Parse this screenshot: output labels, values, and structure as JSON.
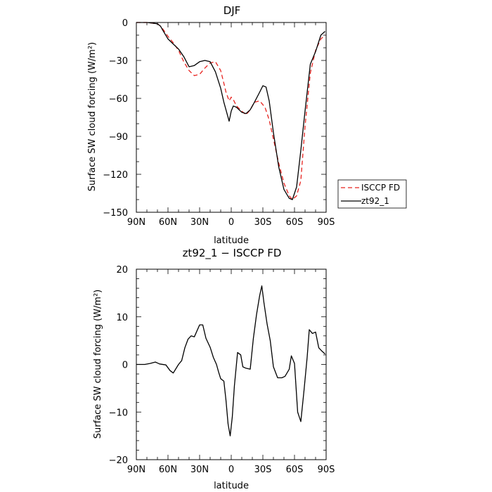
{
  "chart_data": [
    {
      "type": "line",
      "title": "DJF",
      "xlabel": "latitude",
      "ylabel": "Surface SW cloud forcing (W/m²)",
      "xlim": [
        90,
        -90
      ],
      "ylim": [
        -150,
        0
      ],
      "x_ticks": [
        "90N",
        "60N",
        "30N",
        "0",
        "30S",
        "60S",
        "90S"
      ],
      "y_ticks": [
        "0",
        "−30",
        "−60",
        "−90",
        "−120",
        "−150"
      ],
      "legend_position": "right-outside",
      "series": [
        {
          "name": "ISCCP FD",
          "color": "#e8231f",
          "style": "dashed",
          "x": [
            90,
            80,
            75,
            70,
            67,
            65,
            60,
            55,
            50,
            45,
            40,
            35,
            30,
            25,
            20,
            15,
            10,
            7,
            5,
            2,
            0,
            -2,
            -5,
            -10,
            -14,
            -18,
            -22,
            -27,
            -32,
            -36,
            -40,
            -45,
            -50,
            -55,
            -58,
            -62,
            -66,
            -70,
            -75,
            -80,
            -85,
            -89
          ],
          "y": [
            0,
            0,
            -0.5,
            -1,
            -3,
            -5,
            -11,
            -16,
            -22,
            -31,
            -38,
            -42,
            -41,
            -36,
            -32,
            -31,
            -38,
            -48,
            -55,
            -62,
            -59,
            -61,
            -66,
            -70,
            -73,
            -69,
            -63,
            -62,
            -67,
            -77,
            -92,
            -111,
            -127,
            -137,
            -140,
            -137,
            -125,
            -82,
            -40,
            -22,
            -13,
            -10
          ]
        },
        {
          "name": "zt92_1",
          "color": "#000000",
          "style": "solid",
          "x": [
            90,
            80,
            75,
            70,
            67,
            65,
            60,
            55,
            50,
            45,
            40,
            35,
            30,
            25,
            20,
            15,
            10,
            7,
            5,
            2,
            0,
            -2,
            -5,
            -10,
            -14,
            -18,
            -22,
            -27,
            -30,
            -33,
            -36,
            -40,
            -45,
            -50,
            -55,
            -58,
            -62,
            -66,
            -70,
            -75,
            -80,
            -85,
            -89
          ],
          "y": [
            0,
            0,
            -0.5,
            -1,
            -3,
            -6,
            -13,
            -17,
            -21,
            -27,
            -35,
            -34,
            -31,
            -30,
            -31,
            -39,
            -52,
            -63,
            -69,
            -78,
            -70,
            -66,
            -67,
            -71,
            -72,
            -69,
            -63,
            -55,
            -50,
            -51,
            -62,
            -87,
            -114,
            -132,
            -139,
            -140,
            -130,
            -101,
            -70,
            -33,
            -23,
            -10,
            -7
          ]
        }
      ]
    },
    {
      "type": "line",
      "title": "zt92_1 − ISCCP FD",
      "xlabel": "latitude",
      "ylabel": "Surface SW cloud forcing (W/m²)",
      "xlim": [
        90,
        -90
      ],
      "ylim": [
        -20,
        20
      ],
      "x_ticks": [
        "90N",
        "60N",
        "30N",
        "0",
        "30S",
        "60S",
        "90S"
      ],
      "y_ticks": [
        "20",
        "10",
        "0",
        "−10",
        "−20"
      ],
      "series": [
        {
          "name": "",
          "color": "#000000",
          "style": "solid",
          "x": [
            90,
            82,
            77,
            72,
            70,
            68,
            62,
            58,
            55,
            50,
            47,
            44,
            41,
            38,
            35,
            30,
            27,
            24,
            20,
            17,
            14,
            12,
            10,
            7,
            5,
            3,
            1,
            -1,
            -3,
            -6,
            -9,
            -11,
            -14,
            -18,
            -21,
            -24,
            -27,
            -29,
            -31,
            -34,
            -37,
            -40,
            -44,
            -48,
            -51,
            -55,
            -57,
            -60,
            -63,
            -66,
            -69,
            -72,
            -74,
            -77,
            -80,
            -83,
            -86,
            -89
          ],
          "y": [
            0,
            0,
            0.2,
            0.5,
            0.3,
            0.1,
            -0.1,
            -1.3,
            -1.8,
            0,
            0.8,
            3.5,
            5.3,
            6,
            5.8,
            8.3,
            8.3,
            5.5,
            3.6,
            1.5,
            0,
            -1.6,
            -3,
            -3.5,
            -7.5,
            -12.5,
            -15,
            -11,
            -4.5,
            2.5,
            2,
            -0.5,
            -0.8,
            -1,
            5.5,
            10.5,
            14.5,
            16.5,
            13,
            8.5,
            5,
            -0.5,
            -2.8,
            -2.8,
            -2.5,
            -1,
            1.8,
            0.2,
            -10,
            -12,
            -5.5,
            1.5,
            7.3,
            6.5,
            6.8,
            3.5,
            2.8,
            2.2
          ]
        }
      ]
    }
  ]
}
